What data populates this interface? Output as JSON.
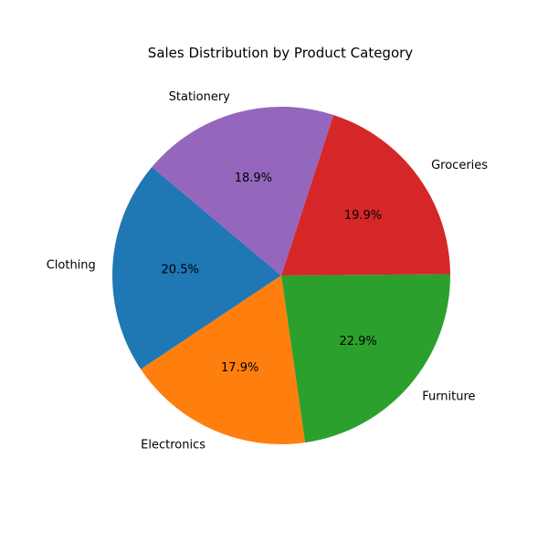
{
  "chart_data": {
    "type": "pie",
    "title": "Sales Distribution by Product Category",
    "categories": [
      "Clothing",
      "Electronics",
      "Furniture",
      "Groceries",
      "Stationery"
    ],
    "values": [
      20.5,
      17.9,
      22.9,
      19.9,
      18.9
    ],
    "percent_labels": [
      "20.5%",
      "17.9%",
      "22.9%",
      "19.9%",
      "18.9%"
    ],
    "colors": [
      "#1f77b4",
      "#ff7f0e",
      "#2ca02c",
      "#d62728",
      "#9467bd"
    ],
    "start_angle_deg": 140,
    "direction": "counterclockwise"
  }
}
